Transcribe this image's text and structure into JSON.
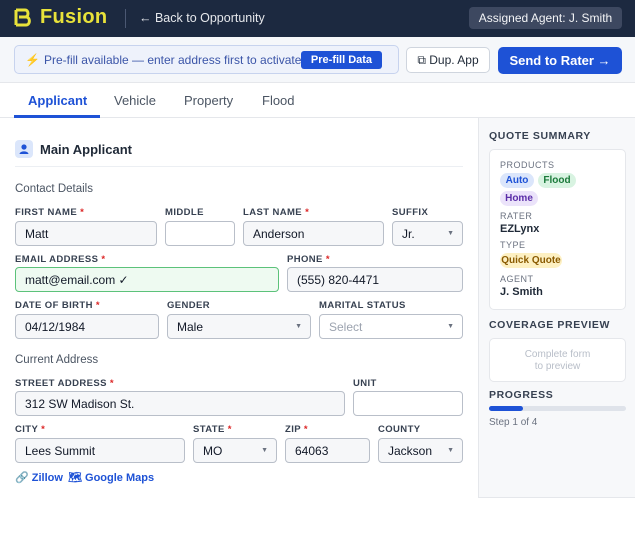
{
  "app": {
    "name": "Fusion"
  },
  "header": {
    "back_label": "← Back to Opportunity",
    "agent_label": "Assigned Agent: J. Smith"
  },
  "actions": {
    "prefill_text": "Pre-fill available — enter address first to activate",
    "prefill_button": "Pre-fill Data",
    "dup_label": "⧉ Dup. App",
    "send_label": "Send to Rater →"
  },
  "tabs": [
    {
      "label": "Applicant",
      "active": true
    },
    {
      "label": "Vehicle",
      "active": false
    },
    {
      "label": "Property",
      "active": false
    },
    {
      "label": "Flood",
      "active": false
    }
  ],
  "form": {
    "section_title": "Main Applicant",
    "contact_heading": "Contact Details",
    "address_heading": "Current Address",
    "labels": {
      "first_name": "FIRST NAME",
      "middle": "MIDDLE",
      "last_name": "LAST NAME",
      "suffix": "SUFFIX",
      "email": "EMAIL ADDRESS",
      "phone": "PHONE",
      "dob": "DATE OF BIRTH",
      "gender": "GENDER",
      "marital": "MARITAL STATUS",
      "street": "STREET ADDRESS",
      "unit": "UNIT",
      "city": "CITY",
      "state": "STATE",
      "zip": "ZIP",
      "county": "COUNTY"
    },
    "values": {
      "first_name": "Matt",
      "middle": "",
      "last_name": "Anderson",
      "suffix": "Jr.",
      "email": "matt@email.com ✓",
      "phone": "(555) 820-4471",
      "dob": "04/12/1984",
      "gender": "Male",
      "marital": "",
      "street": "312 SW Madison St.",
      "unit": "",
      "city": "Lees Summit",
      "state": "MO",
      "zip": "64063",
      "county": "Jackson"
    },
    "placeholders": {
      "marital": "Select"
    },
    "required_mark": "*",
    "links": {
      "zillow": "🔗 Zillow",
      "maps": "🗺 Google Maps"
    }
  },
  "summary": {
    "heading": "QUOTE SUMMARY",
    "products_label": "PRODUCTS",
    "products": [
      "Auto",
      "Flood",
      "Home"
    ],
    "rater_label": "RATER",
    "rater": "EZLynx",
    "type_label": "TYPE",
    "type": "Quick Quote",
    "agent_label": "AGENT",
    "agent": "J. Smith",
    "coverage_heading": "COVERAGE PREVIEW",
    "coverage_text_1": "Complete form",
    "coverage_text_2": "to preview",
    "progress_heading": "PROGRESS",
    "progress_text": "Step 1 of 4",
    "progress_fraction": 0.25
  },
  "colors": {
    "brand": "#e8e23a",
    "accent": "#1e52d6",
    "topbar": "#1c2940",
    "valid": "#5cc27a"
  },
  "icons": {
    "logo": "fusion-logo",
    "user": "user-icon",
    "bolt": "lightning-icon",
    "copy": "copy-icon"
  }
}
